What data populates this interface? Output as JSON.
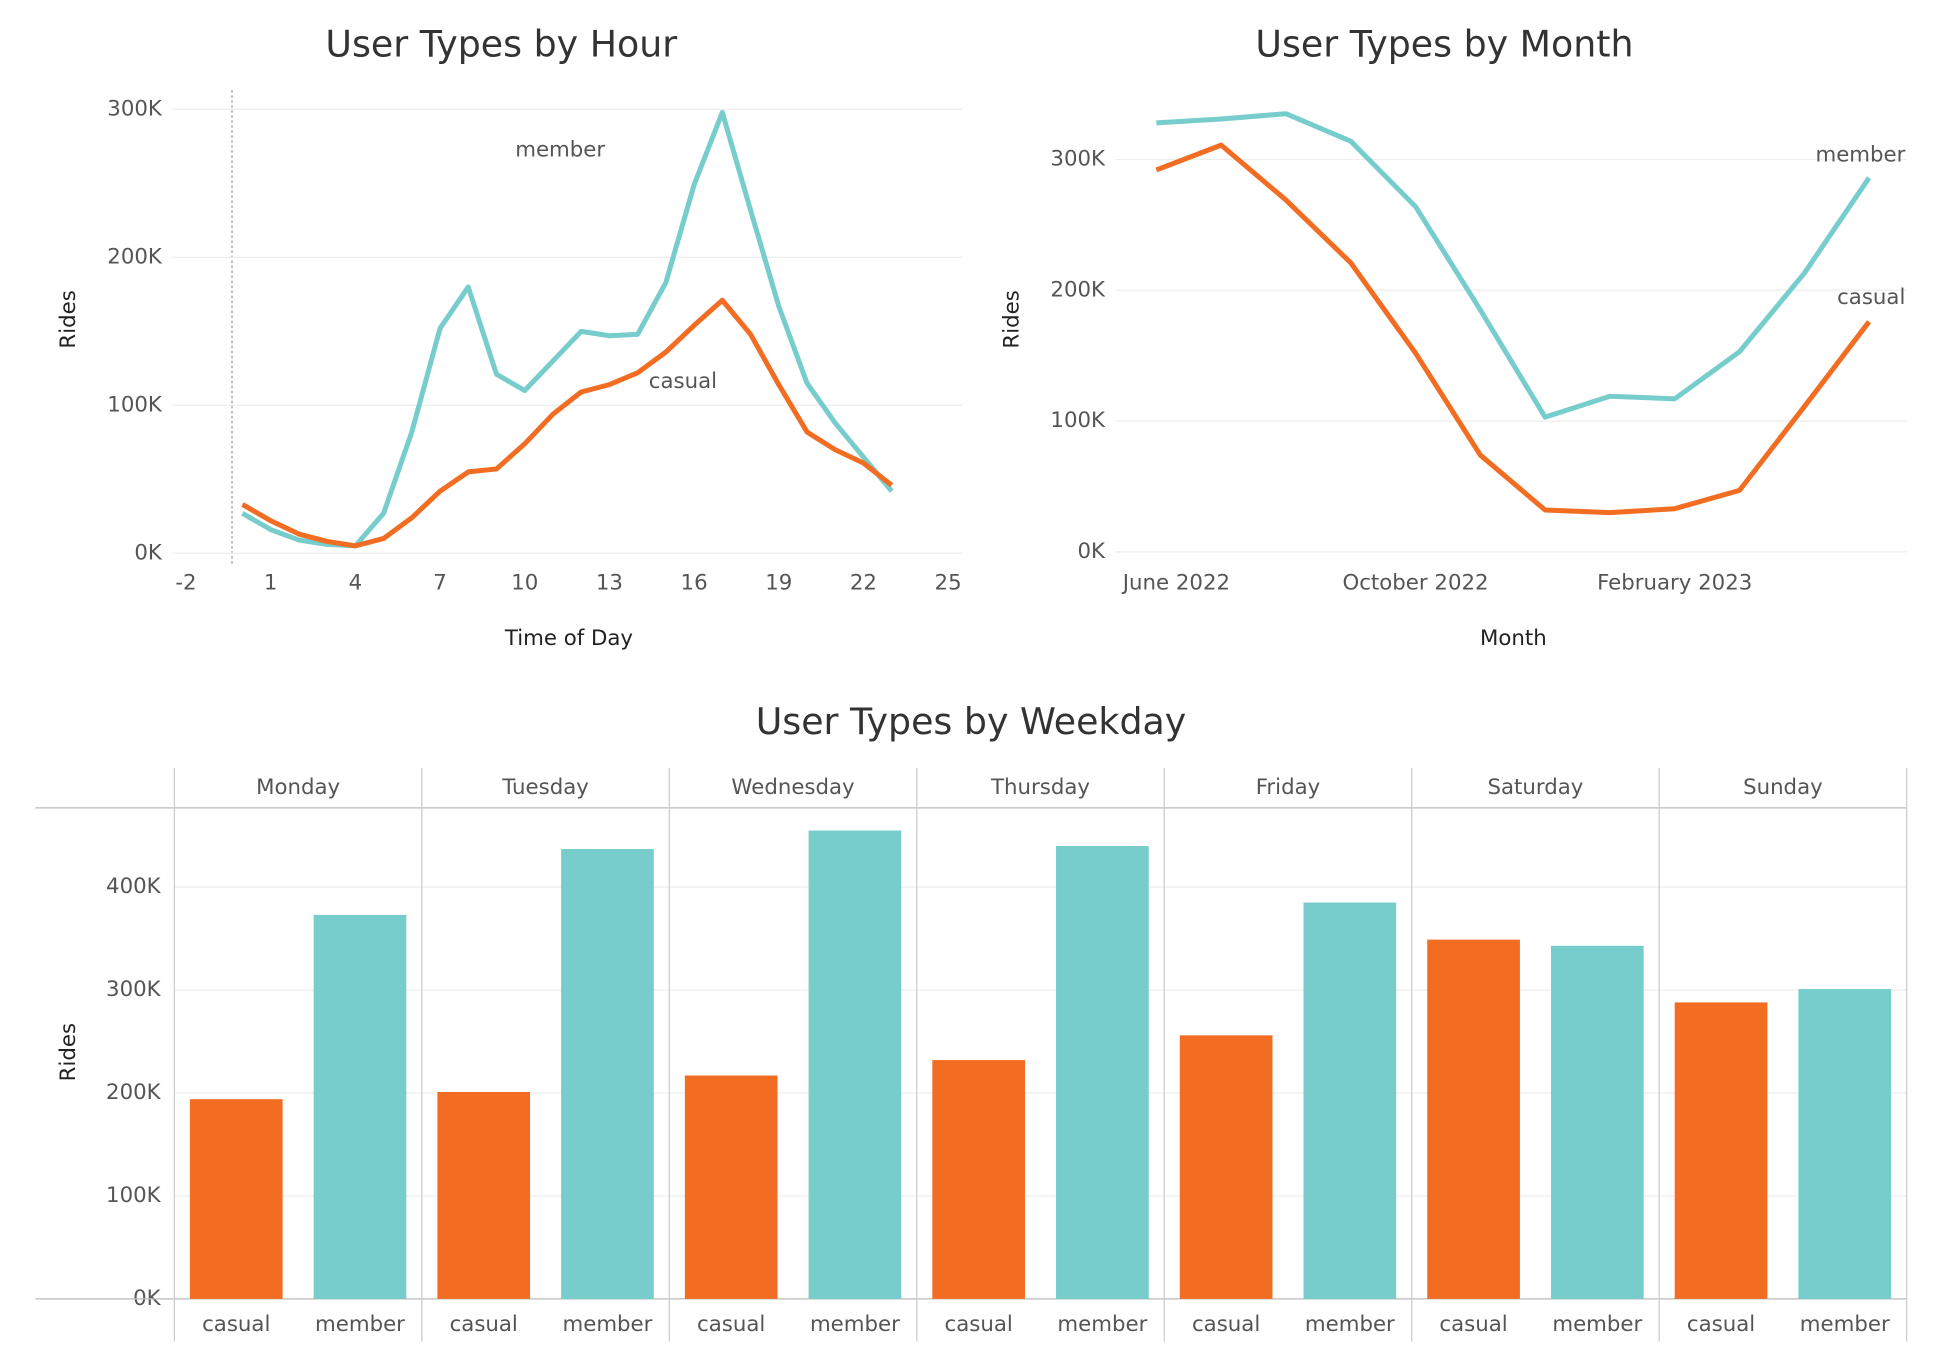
{
  "chart_data": [
    {
      "type": "line",
      "title": "User Types by Hour",
      "x_label": "Time of Day",
      "y_label": "Rides",
      "x": [
        0,
        1,
        2,
        3,
        4,
        5,
        6,
        7,
        8,
        9,
        10,
        11,
        12,
        13,
        14,
        15,
        16,
        17,
        18,
        19,
        20,
        21,
        22,
        23
      ],
      "xlim": [
        -2.5,
        25.5
      ],
      "xticks": [
        -2,
        1,
        4,
        7,
        10,
        13,
        16,
        19,
        22,
        25
      ],
      "ylim": [
        -7000,
        313000
      ],
      "yticks": [
        {
          "value": 0,
          "label": "0K"
        },
        {
          "value": 100000,
          "label": "100K"
        },
        {
          "value": 200000,
          "label": "200K"
        },
        {
          "value": 300000,
          "label": "300K"
        }
      ],
      "grid": true,
      "series": [
        {
          "name": "member",
          "color": "#76cdcb",
          "values": [
            27000,
            16000,
            9000,
            6000,
            5000,
            27000,
            82000,
            152000,
            180000,
            121000,
            110000,
            130000,
            150000,
            147000,
            148000,
            183000,
            249000,
            298000,
            232000,
            167000,
            115000,
            88000,
            65000,
            42000
          ]
        },
        {
          "name": "casual",
          "color": "#f26d22",
          "values": [
            33000,
            22000,
            13000,
            8000,
            5000,
            10000,
            24000,
            42000,
            55000,
            57000,
            74000,
            94000,
            109000,
            114000,
            122000,
            136000,
            154000,
            171000,
            148000,
            114000,
            82000,
            70000,
            61000,
            46000
          ]
        }
      ]
    },
    {
      "type": "line",
      "title": "User Types by Month",
      "x_label": "Month",
      "y_label": "Rides",
      "categories": [
        "June 2022",
        null,
        null,
        null,
        "October 2022",
        null,
        null,
        null,
        "February 2023",
        null,
        null,
        null
      ],
      "ylim": [
        -9000,
        353000
      ],
      "yticks": [
        {
          "value": 0,
          "label": "0K"
        },
        {
          "value": 100000,
          "label": "100K"
        },
        {
          "value": 200000,
          "label": "200K"
        },
        {
          "value": 300000,
          "label": "300K"
        }
      ],
      "grid": true,
      "series": [
        {
          "name": "member",
          "color": "#76cdcb",
          "values": [
            328000,
            331000,
            335000,
            314000,
            264000,
            185000,
            103000,
            119000,
            117000,
            153000,
            213000,
            286000
          ]
        },
        {
          "name": "casual",
          "color": "#f26d22",
          "values": [
            292000,
            311000,
            269000,
            221000,
            152000,
            74000,
            32000,
            30000,
            33000,
            47000,
            111000,
            176000
          ]
        }
      ]
    },
    {
      "type": "bar",
      "title": "User Types by Weekday",
      "y_label": "Rides",
      "categories": [
        "Monday",
        "Tuesday",
        "Wednesday",
        "Thursday",
        "Friday",
        "Saturday",
        "Sunday"
      ],
      "ylim": [
        0,
        477000
      ],
      "yticks": [
        {
          "value": 0,
          "label": "0K"
        },
        {
          "value": 100000,
          "label": "100K"
        },
        {
          "value": 200000,
          "label": "200K"
        },
        {
          "value": 300000,
          "label": "300K"
        },
        {
          "value": 400000,
          "label": "400K"
        }
      ],
      "grid": true,
      "series": [
        {
          "name": "casual",
          "color": "#f26d22",
          "values": [
            194000,
            201000,
            217000,
            232000,
            256000,
            349000,
            288000
          ]
        },
        {
          "name": "member",
          "color": "#76cdcb",
          "values": [
            373000,
            437000,
            455000,
            440000,
            385000,
            343000,
            301000
          ]
        }
      ]
    }
  ]
}
